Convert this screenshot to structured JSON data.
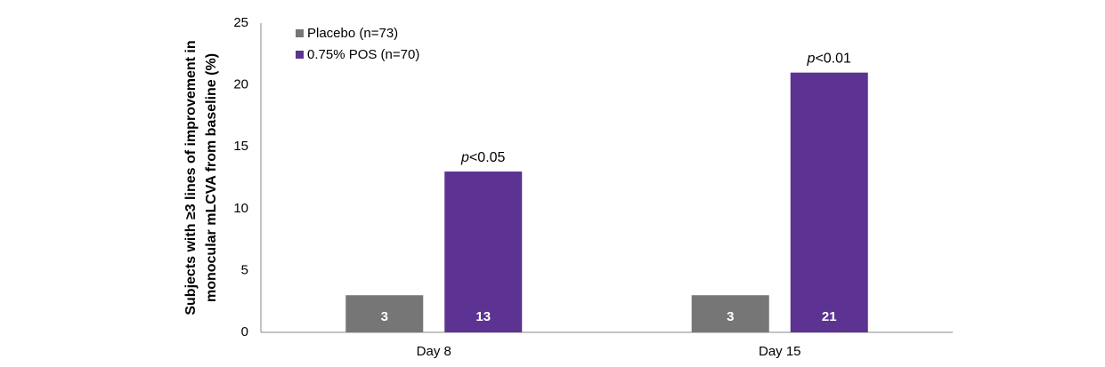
{
  "chart_data": {
    "type": "bar",
    "ylabel": [
      "Subjects with ≥3 lines of improvement in",
      "monocular mLCVA from baseline (%)"
    ],
    "categories": [
      "Day 8",
      "Day 15"
    ],
    "series": [
      {
        "name": "Placebo (n=73)",
        "color": "#767676",
        "values": [
          3,
          3
        ]
      },
      {
        "name": "0.75% POS (n=70)",
        "color": "#5c3392",
        "values": [
          13,
          21
        ]
      }
    ],
    "annotations": [
      "p<0.05",
      "p<0.01"
    ],
    "ylim": [
      0,
      25
    ],
    "yticks": [
      0,
      5,
      10,
      15,
      20,
      25
    ],
    "grid": false,
    "legend": "top-left"
  }
}
